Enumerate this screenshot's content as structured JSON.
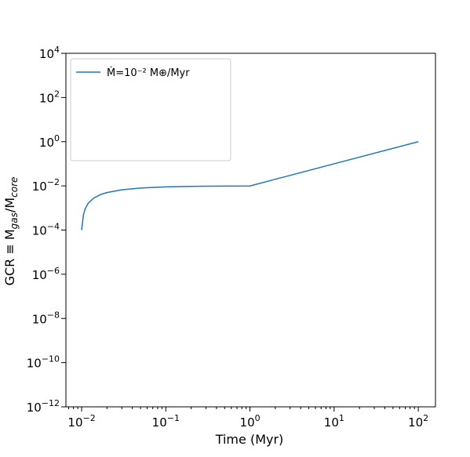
{
  "chart_data": {
    "type": "line",
    "xlabel": "Time (Myr)",
    "ylabel": "GCR ≡ M",
    "ylabel_sub_gas": "gas",
    "ylabel_slash": "/M",
    "ylabel_sub_core": "core",
    "x_scale": "log",
    "y_scale": "log",
    "xlim": [
      0.0065,
      160
    ],
    "ylim": [
      1e-12,
      10000.0
    ],
    "grid": false,
    "legend_position": "top-left",
    "x_ticks": [
      {
        "value": 0.01,
        "base": "10",
        "exp": "−2"
      },
      {
        "value": 0.1,
        "base": "10",
        "exp": "−1"
      },
      {
        "value": 1,
        "base": "10",
        "exp": "0"
      },
      {
        "value": 10,
        "base": "10",
        "exp": "1"
      },
      {
        "value": 100,
        "base": "10",
        "exp": "2"
      }
    ],
    "y_ticks": [
      {
        "value": 1e-12,
        "base": "10",
        "exp": "−12"
      },
      {
        "value": 1e-10,
        "base": "10",
        "exp": "−10"
      },
      {
        "value": 1e-08,
        "base": "10",
        "exp": "−8"
      },
      {
        "value": 1e-06,
        "base": "10",
        "exp": "−6"
      },
      {
        "value": 0.0001,
        "base": "10",
        "exp": "−4"
      },
      {
        "value": 0.01,
        "base": "10",
        "exp": "−2"
      },
      {
        "value": 1,
        "base": "10",
        "exp": "0"
      },
      {
        "value": 100.0,
        "base": "10",
        "exp": "2"
      },
      {
        "value": 10000.0,
        "base": "10",
        "exp": "4"
      }
    ],
    "series": [
      {
        "name": "Ṁ=10⁻² M⊕/Myr",
        "color": "#1f77b4",
        "style": "solid",
        "x": [
          0.01,
          0.0102,
          0.0105,
          0.011,
          0.012,
          0.014,
          0.017,
          0.02,
          0.03,
          0.05,
          0.1,
          0.2,
          0.5,
          1,
          2,
          5,
          10,
          20,
          50,
          100
        ],
        "y": [
          0.0001,
          0.000196,
          0.000476,
          0.000909,
          0.001667,
          0.002857,
          0.004118,
          0.005,
          0.006667,
          0.008,
          0.009,
          0.0095,
          0.0098,
          0.0099,
          0.01995,
          0.04998,
          0.09999,
          0.2,
          0.5,
          1.0
        ]
      }
    ]
  }
}
